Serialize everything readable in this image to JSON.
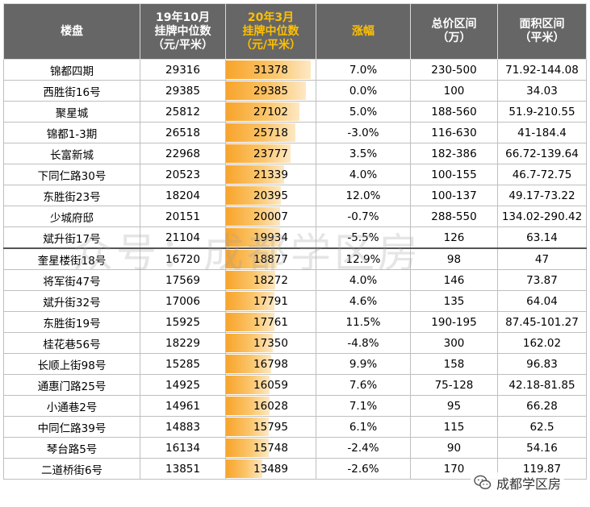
{
  "header": {
    "col1": "楼盘",
    "col2": [
      "19年10月",
      "挂牌中位数",
      "（元/平米）"
    ],
    "col3": [
      "20年3月",
      "挂牌中位数",
      "（元/平米）"
    ],
    "col4": "涨幅",
    "col5": [
      "总价区间",
      "（万）"
    ],
    "col6": [
      "面积区间",
      "（平米）"
    ]
  },
  "rows": [
    {
      "name": "锦都四期",
      "oct19": "29316",
      "mar20": "31378",
      "pct": "7.0%",
      "price": "230-500",
      "area": "71.92-144.08",
      "bar": 31378
    },
    {
      "name": "西胜街16号",
      "oct19": "29385",
      "mar20": "29385",
      "pct": "0.0%",
      "price": "100",
      "area": "34.03",
      "bar": 29385
    },
    {
      "name": "聚星城",
      "oct19": "25812",
      "mar20": "27102",
      "pct": "5.0%",
      "price": "188-560",
      "area": "51.9-210.55",
      "bar": 27102
    },
    {
      "name": "锦都1-3期",
      "oct19": "26518",
      "mar20": "25718",
      "pct": "-3.0%",
      "price": "116-630",
      "area": "41-184.4",
      "bar": 25718
    },
    {
      "name": "长富新城",
      "oct19": "22968",
      "mar20": "23777",
      "pct": "3.5%",
      "price": "182-386",
      "area": "66.72-139.64",
      "bar": 23777
    },
    {
      "name": "下同仁路30号",
      "oct19": "20523",
      "mar20": "21339",
      "pct": "4.0%",
      "price": "100-155",
      "area": "46.7-72.75",
      "bar": 21339
    },
    {
      "name": "东胜街23号",
      "oct19": "18204",
      "mar20": "20395",
      "pct": "12.0%",
      "price": "100-137",
      "area": "49.17-73.22",
      "bar": 20395
    },
    {
      "name": "少城府邸",
      "oct19": "20151",
      "mar20": "20007",
      "pct": "-0.7%",
      "price": "288-550",
      "area": "134.02-290.42",
      "bar": 20007
    },
    {
      "name": "斌升街17号",
      "oct19": "21104",
      "mar20": "19934",
      "pct": "-5.5%",
      "price": "126",
      "area": "63.14",
      "bar": 19934
    },
    {
      "name": "奎星楼街18号",
      "oct19": "16720",
      "mar20": "18877",
      "pct": "12.9%",
      "price": "98",
      "area": "47",
      "bar": 18877
    },
    {
      "name": "将军街47号",
      "oct19": "17569",
      "mar20": "18272",
      "pct": "4.0%",
      "price": "146",
      "area": "73.87",
      "bar": 18272
    },
    {
      "name": "斌升街32号",
      "oct19": "17006",
      "mar20": "17791",
      "pct": "4.6%",
      "price": "135",
      "area": "64.04",
      "bar": 17791
    },
    {
      "name": "东胜街19号",
      "oct19": "15925",
      "mar20": "17761",
      "pct": "11.5%",
      "price": "190-195",
      "area": "87.45-101.27",
      "bar": 17761
    },
    {
      "name": "桂花巷56号",
      "oct19": "18229",
      "mar20": "17350",
      "pct": "-4.8%",
      "price": "300",
      "area": "162.02",
      "bar": 17350
    },
    {
      "name": "长顺上街98号",
      "oct19": "15285",
      "mar20": "16798",
      "pct": "9.9%",
      "price": "158",
      "area": "96.83",
      "bar": 16798
    },
    {
      "name": "通惠门路25号",
      "oct19": "14925",
      "mar20": "16059",
      "pct": "7.6%",
      "price": "75-128",
      "area": "42.18-81.85",
      "bar": 16059
    },
    {
      "name": "小通巷2号",
      "oct19": "14961",
      "mar20": "16028",
      "pct": "7.1%",
      "price": "95",
      "area": "66.28",
      "bar": 16028
    },
    {
      "name": "中同仁路39号",
      "oct19": "14883",
      "mar20": "15795",
      "pct": "6.1%",
      "price": "115",
      "area": "62.5",
      "bar": 15795
    },
    {
      "name": "琴台路5号",
      "oct19": "16134",
      "mar20": "15748",
      "pct": "-2.4%",
      "price": "90",
      "area": "54.16",
      "bar": 15748
    },
    {
      "name": "二道桥街6号",
      "oct19": "13851",
      "mar20": "13489",
      "pct": "-2.6%",
      "price": "170",
      "area": "119.87",
      "bar": 13489
    }
  ],
  "watermark": "众号：成都学区房",
  "footer": {
    "icon": "wechat-icon",
    "text": "成都学区房"
  },
  "colors": {
    "header_bg": "#666666",
    "header_highlight": "#ffc000",
    "bar": "#f8a42b"
  }
}
